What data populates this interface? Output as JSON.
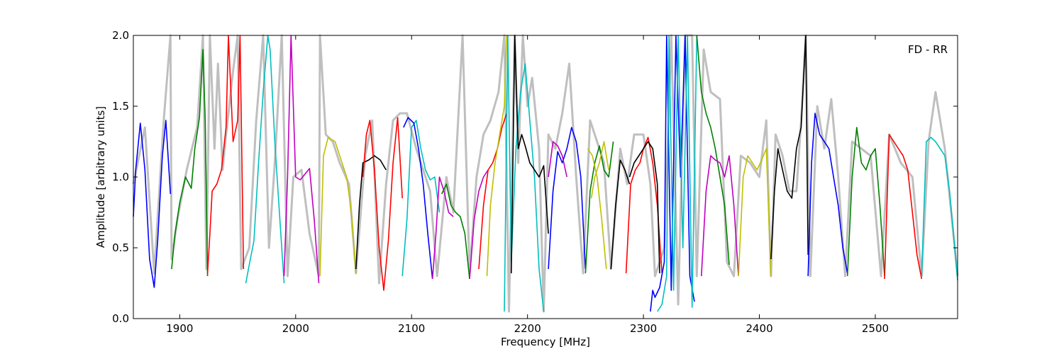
{
  "chart_data": {
    "type": "line",
    "title": "",
    "xlabel": "Frequency [MHz]",
    "ylabel": "Amplitude [arbitrary units]",
    "xlim": [
      1860,
      2571
    ],
    "ylim": [
      0.0,
      2.0
    ],
    "xticks": [
      1900,
      2000,
      2100,
      2200,
      2300,
      2400,
      2500
    ],
    "xtick_labels": [
      "1900",
      "2000",
      "2100",
      "2200",
      "2300",
      "2400",
      "2500"
    ],
    "yticks": [
      0.0,
      0.5,
      1.0,
      1.5,
      2.0
    ],
    "ytick_labels": [
      "0.0",
      "0.5",
      "1.0",
      "1.5",
      "2.0"
    ],
    "annotation": "FD - RR",
    "annotation_position": "top-right",
    "grid": false,
    "background_series": {
      "color": "#bfbfbf",
      "x": [
        1860,
        1870,
        1878,
        1886,
        1892,
        1893,
        1898,
        1906,
        1915,
        1920,
        1923,
        1926,
        1930,
        1933,
        1937,
        1940,
        1946,
        1950,
        1953,
        1960,
        1966,
        1972,
        1977,
        1982,
        1988,
        1993,
        1998,
        2005,
        2012,
        2020,
        2021,
        2026,
        2032,
        2038,
        2046,
        2052,
        2060,
        2066,
        2072,
        2078,
        2084,
        2090,
        2096,
        2104,
        2110,
        2116,
        2122,
        2130,
        2136,
        2144,
        2150,
        2156,
        2162,
        2168,
        2175,
        2180,
        2184,
        2189,
        2192,
        2196,
        2200,
        2204,
        2210,
        2214,
        2218,
        2224,
        2230,
        2236,
        2242,
        2248,
        2254,
        2260,
        2266,
        2272,
        2280,
        2286,
        2292,
        2300,
        2306,
        2310,
        2318,
        2324,
        2330,
        2336,
        2342,
        2346,
        2352,
        2358,
        2366,
        2372,
        2378,
        2384,
        2392,
        2400,
        2406,
        2410,
        2414,
        2420,
        2426,
        2432,
        2436,
        2440,
        2444,
        2450,
        2456,
        2462,
        2468,
        2474,
        2480,
        2488,
        2496,
        2505,
        2512,
        2522,
        2532,
        2540,
        2546,
        2552,
        2560,
        2571
      ],
      "y": [
        0.95,
        1.35,
        0.32,
        1.38,
        2.0,
        0.42,
        0.7,
        1.05,
        1.35,
        2.0,
        0.35,
        2.0,
        1.2,
        1.8,
        1.05,
        1.3,
        1.75,
        2.0,
        0.35,
        0.5,
        1.4,
        2.0,
        0.5,
        1.1,
        2.0,
        0.3,
        1.0,
        1.05,
        0.6,
        0.3,
        2.0,
        1.3,
        1.25,
        1.1,
        0.95,
        0.32,
        1.15,
        1.4,
        0.25,
        0.95,
        1.4,
        1.45,
        1.45,
        1.2,
        1.05,
        0.9,
        0.3,
        1.0,
        0.75,
        2.0,
        0.32,
        1.0,
        1.3,
        1.4,
        1.6,
        2.0,
        0.05,
        2.0,
        1.1,
        2.0,
        1.5,
        1.7,
        1.2,
        0.05,
        1.3,
        1.2,
        1.45,
        1.8,
        1.0,
        0.32,
        1.4,
        1.25,
        1.1,
        0.35,
        1.2,
        0.95,
        1.3,
        1.3,
        0.95,
        0.3,
        0.5,
        2.0,
        0.1,
        2.0,
        2.0,
        0.3,
        1.9,
        1.6,
        1.55,
        0.4,
        0.3,
        1.15,
        1.1,
        1.0,
        1.4,
        0.3,
        1.3,
        1.15,
        0.9,
        0.9,
        1.4,
        2.0,
        0.3,
        1.5,
        1.2,
        1.55,
        1.0,
        0.3,
        1.25,
        1.2,
        1.15,
        0.3,
        1.3,
        1.1,
        1.0,
        0.3,
        1.25,
        1.6,
        1.2,
        0.3
      ]
    },
    "series": [
      {
        "color": "#0000ff",
        "x": [
          1860,
          1862,
          1866,
          1870,
          1874,
          1878,
          1881,
          1885,
          1888,
          1892
        ],
        "y": [
          0.72,
          1.05,
          1.38,
          1.05,
          0.42,
          0.22,
          0.55,
          1.15,
          1.4,
          0.88
        ]
      },
      {
        "color": "#008000",
        "x": [
          1893,
          1896,
          1900,
          1905,
          1910,
          1913,
          1917,
          1920,
          1922,
          1924
        ],
        "y": [
          0.35,
          0.6,
          0.82,
          1.0,
          0.92,
          1.2,
          1.42,
          1.9,
          1.4,
          0.3
        ]
      },
      {
        "color": "#ff0000",
        "x": [
          1924,
          1926,
          1928,
          1932,
          1936,
          1940,
          1942,
          1946,
          1950,
          1952,
          1955
        ],
        "y": [
          0.32,
          0.6,
          0.9,
          0.95,
          1.05,
          1.35,
          2.0,
          1.25,
          1.4,
          2.0,
          0.35
        ]
      },
      {
        "color": "#00bfbf",
        "x": [
          1957,
          1960,
          1964,
          1968,
          1972,
          1976,
          1978,
          1982,
          1986,
          1990
        ],
        "y": [
          0.25,
          0.38,
          0.55,
          1.1,
          1.6,
          2.0,
          1.9,
          1.25,
          0.75,
          0.25
        ]
      },
      {
        "color": "#bf00bf",
        "x": [
          1990,
          1993,
          1996,
          2000,
          2004,
          2008,
          2012,
          2016,
          2020
        ],
        "y": [
          0.3,
          1.0,
          2.0,
          1.0,
          0.98,
          1.02,
          1.06,
          0.7,
          0.25
        ]
      },
      {
        "color": "#bfbf00",
        "x": [
          2021,
          2024,
          2028,
          2034,
          2040,
          2044,
          2048,
          2052
        ],
        "y": [
          0.3,
          1.15,
          1.28,
          1.25,
          1.1,
          1.0,
          0.75,
          0.32
        ]
      },
      {
        "color": "#000000",
        "x": [
          2052,
          2055,
          2058,
          2063,
          2068,
          2073,
          2078
        ],
        "y": [
          0.35,
          0.8,
          1.1,
          1.12,
          1.15,
          1.12,
          1.05
        ]
      },
      {
        "color": "#ff0000",
        "x": [
          2058,
          2061,
          2064,
          2068,
          2072,
          2076,
          2080,
          2084,
          2088,
          2092
        ],
        "y": [
          1.0,
          1.3,
          1.4,
          1.05,
          0.5,
          0.2,
          0.55,
          1.1,
          1.42,
          0.85
        ]
      },
      {
        "color": "#00bfbf",
        "x": [
          2092,
          2096,
          2100,
          2104,
          2108
        ],
        "y": [
          0.3,
          0.7,
          1.35,
          1.4,
          1.2
        ]
      },
      {
        "color": "#0000ff",
        "x": [
          2093,
          2097,
          2102,
          2106,
          2110,
          2114,
          2118
        ],
        "y": [
          1.35,
          1.42,
          1.38,
          1.2,
          0.95,
          0.6,
          0.28
        ]
      },
      {
        "color": "#00bfbf",
        "x": [
          2108,
          2112,
          2116,
          2120,
          2124
        ],
        "y": [
          1.2,
          1.05,
          0.98,
          1.0,
          0.75
        ]
      },
      {
        "color": "#bf00bf",
        "x": [
          2118,
          2121,
          2124,
          2128,
          2132,
          2136
        ],
        "y": [
          0.28,
          0.6,
          1.0,
          0.9,
          0.75,
          0.72
        ]
      },
      {
        "color": "#008000",
        "x": [
          2126,
          2130,
          2134,
          2138,
          2142,
          2146,
          2150
        ],
        "y": [
          0.88,
          0.95,
          0.8,
          0.75,
          0.72,
          0.6,
          0.28
        ]
      },
      {
        "color": "#bf00bf",
        "x": [
          2150,
          2154,
          2158,
          2162,
          2166
        ],
        "y": [
          0.28,
          0.7,
          0.9,
          1.0,
          1.05
        ]
      },
      {
        "color": "#ff0000",
        "x": [
          2158,
          2162,
          2166,
          2170,
          2174,
          2178,
          2182
        ],
        "y": [
          0.35,
          0.8,
          1.05,
          1.1,
          1.2,
          1.35,
          1.45
        ]
      },
      {
        "color": "#bfbf00",
        "x": [
          2165,
          2168,
          2172,
          2176,
          2180,
          2182
        ],
        "y": [
          0.3,
          0.8,
          1.1,
          1.3,
          1.5,
          2.0
        ]
      },
      {
        "color": "#00bfbf",
        "x": [
          2180,
          2183,
          2186,
          2190,
          2194,
          2198,
          2202,
          2206,
          2210,
          2214
        ],
        "y": [
          0.05,
          2.0,
          0.4,
          1.2,
          1.6,
          1.8,
          1.4,
          1.0,
          0.35,
          0.05
        ]
      },
      {
        "color": "#000000",
        "x": [
          2186,
          2189,
          2192,
          2195,
          2198,
          2202,
          2206,
          2210,
          2214,
          2218
        ],
        "y": [
          0.32,
          2.0,
          1.2,
          1.3,
          1.22,
          1.1,
          1.05,
          1.0,
          1.08,
          0.6
        ]
      },
      {
        "color": "#0000ff",
        "x": [
          2218,
          2222,
          2226,
          2230,
          2234,
          2238,
          2242,
          2246,
          2250
        ],
        "y": [
          0.35,
          0.9,
          1.18,
          1.1,
          1.2,
          1.35,
          1.25,
          1.0,
          0.35
        ]
      },
      {
        "color": "#bf00bf",
        "x": [
          2218,
          2222,
          2226,
          2230,
          2234
        ],
        "y": [
          1.0,
          1.25,
          1.22,
          1.15,
          1.0
        ]
      },
      {
        "color": "#008000",
        "x": [
          2250,
          2254,
          2258,
          2262,
          2266,
          2270,
          2274
        ],
        "y": [
          0.32,
          0.9,
          1.1,
          1.22,
          1.05,
          1.0,
          1.25
        ]
      },
      {
        "color": "#bfbf00",
        "x": [
          2255,
          2258,
          2262,
          2266,
          2270
        ],
        "y": [
          0.85,
          1.0,
          1.1,
          1.25,
          1.05
        ]
      },
      {
        "color": "#bfbf00",
        "x": [
          2252,
          2256,
          2260,
          2264,
          2268
        ],
        "y": [
          1.2,
          1.15,
          1.0,
          0.7,
          0.35
        ]
      },
      {
        "color": "#000000",
        "x": [
          2272,
          2276,
          2280,
          2284,
          2288
        ],
        "y": [
          0.35,
          0.8,
          1.12,
          1.05,
          0.95
        ]
      },
      {
        "color": "#ff0000",
        "x": [
          2285,
          2289,
          2293,
          2297,
          2300,
          2304,
          2308,
          2312,
          2316
        ],
        "y": [
          0.32,
          0.95,
          1.05,
          1.1,
          1.2,
          1.28,
          1.1,
          0.8,
          0.32
        ]
      },
      {
        "color": "#000000",
        "x": [
          2288,
          2292,
          2296,
          2300,
          2304,
          2308,
          2312,
          2314
        ],
        "y": [
          1.0,
          1.1,
          1.15,
          1.2,
          1.25,
          1.2,
          0.95,
          0.32
        ]
      },
      {
        "color": "#0000ff",
        "x": [
          2306,
          2308,
          2310,
          2314,
          2318,
          2320,
          2324,
          2328,
          2332,
          2336,
          2340,
          2344
        ],
        "y": [
          0.05,
          0.2,
          0.15,
          0.22,
          0.4,
          2.0,
          0.2,
          2.0,
          1.0,
          2.0,
          0.3,
          0.12
        ]
      },
      {
        "color": "#00bfbf",
        "x": [
          2312,
          2316,
          2320,
          2322,
          2326,
          2330,
          2334,
          2338,
          2342,
          2346
        ],
        "y": [
          0.05,
          0.1,
          0.3,
          2.0,
          0.2,
          2.0,
          0.5,
          2.0,
          0.08,
          2.0
        ]
      },
      {
        "color": "#008000",
        "x": [
          2346,
          2350,
          2354,
          2358,
          2362,
          2366,
          2370,
          2374
        ],
        "y": [
          2.0,
          1.6,
          1.45,
          1.35,
          1.2,
          1.0,
          0.8,
          0.38
        ]
      },
      {
        "color": "#bf00bf",
        "x": [
          2350,
          2354,
          2358,
          2362,
          2366,
          2370,
          2374,
          2378,
          2382
        ],
        "y": [
          0.3,
          0.9,
          1.15,
          1.12,
          1.1,
          1.0,
          1.15,
          0.8,
          0.3
        ]
      },
      {
        "color": "#bfbf00",
        "x": [
          2382,
          2386,
          2390,
          2394,
          2398,
          2402,
          2406,
          2410
        ],
        "y": [
          0.3,
          1.0,
          1.15,
          1.1,
          1.05,
          1.12,
          1.2,
          0.3
        ]
      },
      {
        "color": "#000000",
        "x": [
          2410,
          2413,
          2416,
          2420,
          2424,
          2428,
          2432,
          2436,
          2440,
          2442
        ],
        "y": [
          0.42,
          0.9,
          1.2,
          1.05,
          0.9,
          0.85,
          1.2,
          1.35,
          2.0,
          0.45
        ]
      },
      {
        "color": "#0000ff",
        "x": [
          2442,
          2445,
          2448,
          2452,
          2456,
          2460,
          2464,
          2468,
          2472,
          2476
        ],
        "y": [
          0.3,
          1.1,
          1.45,
          1.3,
          1.25,
          1.2,
          1.0,
          0.8,
          0.5,
          0.32
        ]
      },
      {
        "color": "#008000",
        "x": [
          2476,
          2480,
          2484,
          2488,
          2492,
          2496,
          2500,
          2504,
          2508
        ],
        "y": [
          0.3,
          1.0,
          1.35,
          1.1,
          1.05,
          1.15,
          1.2,
          0.8,
          0.3
        ]
      },
      {
        "color": "#ff0000",
        "x": [
          2508,
          2512,
          2516,
          2520,
          2524,
          2528,
          2532,
          2536,
          2540
        ],
        "y": [
          0.28,
          1.3,
          1.25,
          1.2,
          1.15,
          1.05,
          0.75,
          0.45,
          0.28
        ]
      },
      {
        "color": "#00bfbf",
        "x": [
          2540,
          2544,
          2548,
          2552,
          2556,
          2560,
          2564,
          2568,
          2571
        ],
        "y": [
          0.3,
          1.25,
          1.28,
          1.25,
          1.2,
          1.15,
          0.9,
          0.55,
          0.27
        ]
      }
    ]
  }
}
